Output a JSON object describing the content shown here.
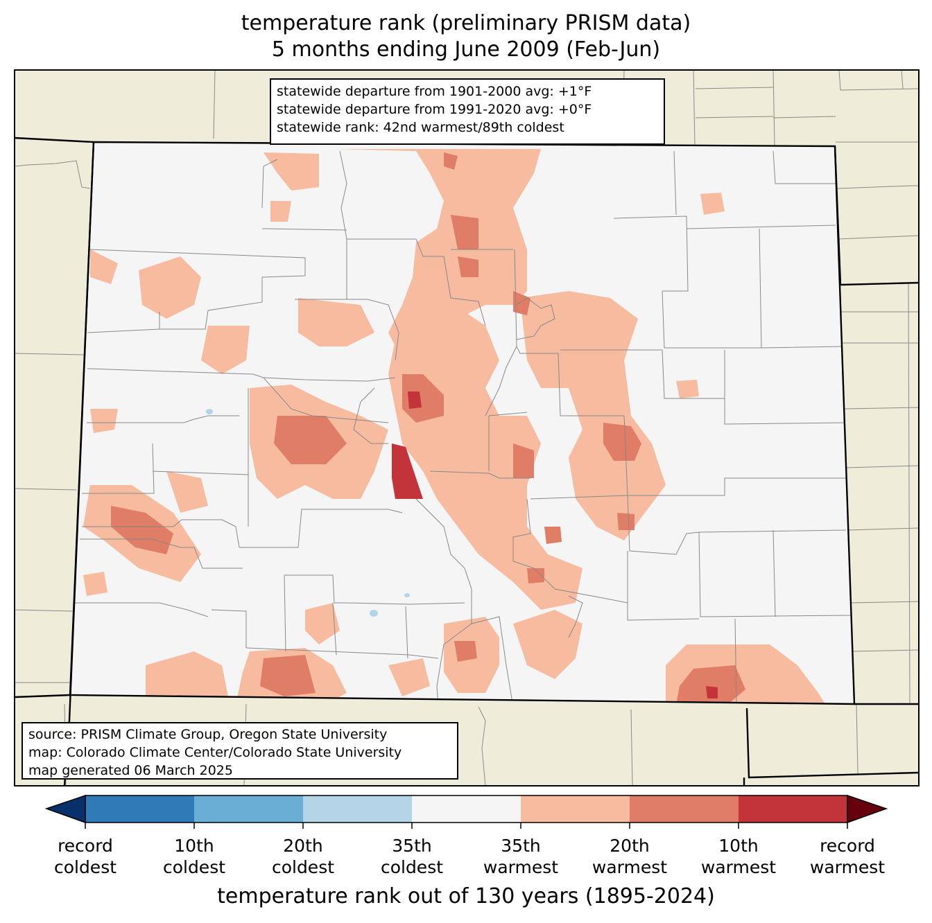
{
  "title": {
    "line1": "temperature rank (preliminary PRISM data)",
    "line2": "5 months ending June 2009 (Feb-Jun)"
  },
  "stats": {
    "line1": "statewide departure from 1901-2000 avg: +1°F",
    "line2": "statewide departure from 1991-2020 avg: +0°F",
    "line3": "statewide rank: 42nd warmest/89th coldest"
  },
  "source": {
    "line1": "source: PRISM Climate Group, Oregon State University",
    "line2": "map: Colorado Climate Center/Colorado State University",
    "line3": "map generated 06 March 2025"
  },
  "colorbar": {
    "label": "temperature rank out of 130 years (1895-2024)",
    "ticks": [
      {
        "line1": "record",
        "line2": "coldest"
      },
      {
        "line1": "10th",
        "line2": "coldest"
      },
      {
        "line1": "20th",
        "line2": "coldest"
      },
      {
        "line1": "35th",
        "line2": "coldest"
      },
      {
        "line1": "35th",
        "line2": "warmest"
      },
      {
        "line1": "20th",
        "line2": "warmest"
      },
      {
        "line1": "10th",
        "line2": "warmest"
      },
      {
        "line1": "record",
        "line2": "warmest"
      }
    ],
    "colors": [
      "#08306b",
      "#2f7bb8",
      "#6aaed5",
      "#b3d4e7",
      "#f5f5f5",
      "#f7bba0",
      "#e07d66",
      "#c3343a",
      "#67000d"
    ]
  },
  "colors": {
    "background_land": "#efedda",
    "state_fill": "#f5f5f5",
    "warm_35": "#f7bba0",
    "warm_20": "#e07d66",
    "warm_10": "#c3343a",
    "cold_35": "#b3d4e7"
  }
}
